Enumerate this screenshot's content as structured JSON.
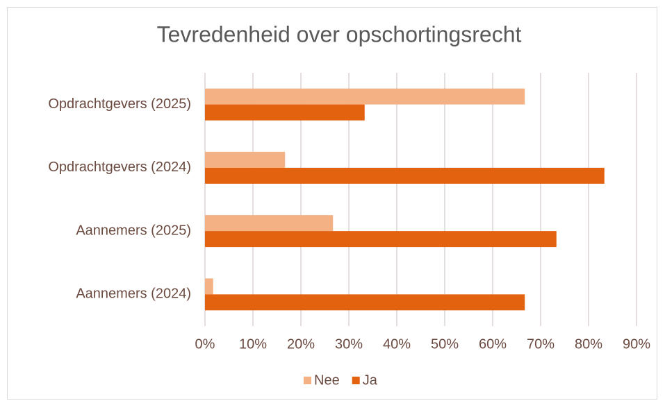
{
  "chart_data": {
    "type": "bar",
    "orientation": "horizontal",
    "title": "Tevredenheid over opschortingsrecht",
    "categories": [
      "Opdrachtgevers (2025)",
      "Opdrachtgevers (2024)",
      "Aannemers (2025)",
      "Aannemers (2024)"
    ],
    "series": [
      {
        "name": "Nee",
        "color": "#f4b183",
        "values": [
          66.7,
          16.7,
          26.7,
          1.7
        ]
      },
      {
        "name": "Ja",
        "color": "#e36210",
        "values": [
          33.3,
          83.3,
          73.3,
          66.7
        ]
      }
    ],
    "xlim": [
      0,
      90
    ],
    "xticks": [
      {
        "value": 0,
        "label": "0%"
      },
      {
        "value": 10,
        "label": "10%"
      },
      {
        "value": 20,
        "label": "20%"
      },
      {
        "value": 30,
        "label": "30%"
      },
      {
        "value": 40,
        "label": "40%"
      },
      {
        "value": 50,
        "label": "50%"
      },
      {
        "value": 60,
        "label": "60%"
      },
      {
        "value": 70,
        "label": "70%"
      },
      {
        "value": 80,
        "label": "80%"
      },
      {
        "value": 90,
        "label": "90%"
      }
    ],
    "grid": true,
    "legend": "bottom"
  }
}
